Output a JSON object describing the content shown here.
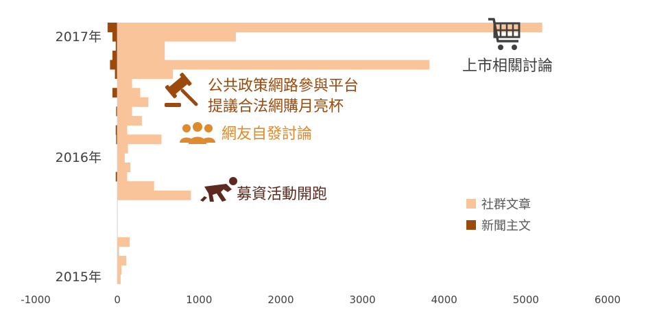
{
  "chart_data": {
    "type": "bar",
    "orientation": "horizontal",
    "xlim": [
      -1000,
      6000
    ],
    "x_ticks": [
      "-1000",
      "0",
      "1000",
      "2000",
      "3000",
      "4000",
      "5000",
      "6000"
    ],
    "x_tick_values": [
      -1000,
      0,
      1000,
      2000,
      3000,
      4000,
      5000,
      6000
    ],
    "year_labels": [
      "2017年",
      "2016年",
      "2015年"
    ],
    "series": [
      {
        "name": "社群文章",
        "color": "#F9C49A",
        "values": [
          5200,
          1450,
          580,
          580,
          3820,
          680,
          180,
          280,
          380,
          180,
          300,
          120,
          540,
          130,
          90,
          160,
          120,
          450,
          900,
          0,
          0,
          0,
          0,
          150,
          20,
          110,
          50,
          40
        ]
      },
      {
        "name": "新聞主文",
        "color": "#9C4A0C",
        "values": [
          -120,
          -60,
          -20,
          -60,
          -90,
          -30,
          0,
          -60,
          0,
          -15,
          0,
          -20,
          -15,
          0,
          0,
          0,
          -20,
          0,
          0,
          0,
          0,
          0,
          0,
          0,
          0,
          0,
          0,
          0
        ]
      }
    ],
    "annotations": [
      {
        "text": "上市相關討論",
        "color": "#404040",
        "icon": "shopping-cart-icon"
      },
      {
        "text_lines": [
          "公共政策網路參與平台",
          "提議合法網購月亮杯"
        ],
        "color": "#9C4A0C",
        "icon": "gavel-icon"
      },
      {
        "text": "網友自發討論",
        "color": "#E08A2E",
        "icon": "users-group-icon"
      },
      {
        "text": "募資活動開跑",
        "color": "#5C2A1E",
        "icon": "runner-start-icon"
      }
    ],
    "legend": {
      "placement": "lower-right"
    }
  }
}
